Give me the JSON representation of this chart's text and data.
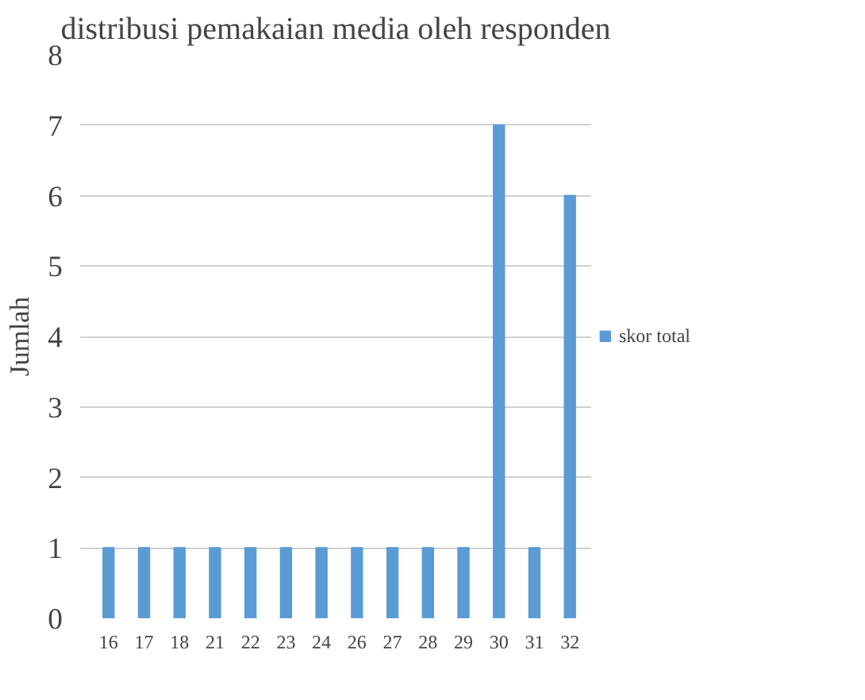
{
  "chart_data": {
    "type": "bar",
    "title": "distribusi pemakaian media oleh responden",
    "ylabel": "Jumlah",
    "categories": [
      "16",
      "17",
      "18",
      "21",
      "22",
      "23",
      "24",
      "26",
      "27",
      "28",
      "29",
      "30",
      "31",
      "32"
    ],
    "series": [
      {
        "name": "skor total",
        "color": "#5b9bd5",
        "values": [
          1,
          1,
          1,
          1,
          1,
          1,
          1,
          1,
          1,
          1,
          1,
          7,
          1,
          6
        ]
      }
    ],
    "ylim": [
      0,
      8
    ],
    "yticks": [
      0,
      1,
      2,
      3,
      4,
      5,
      6,
      7,
      8
    ],
    "grid": "y",
    "legend": "right"
  }
}
